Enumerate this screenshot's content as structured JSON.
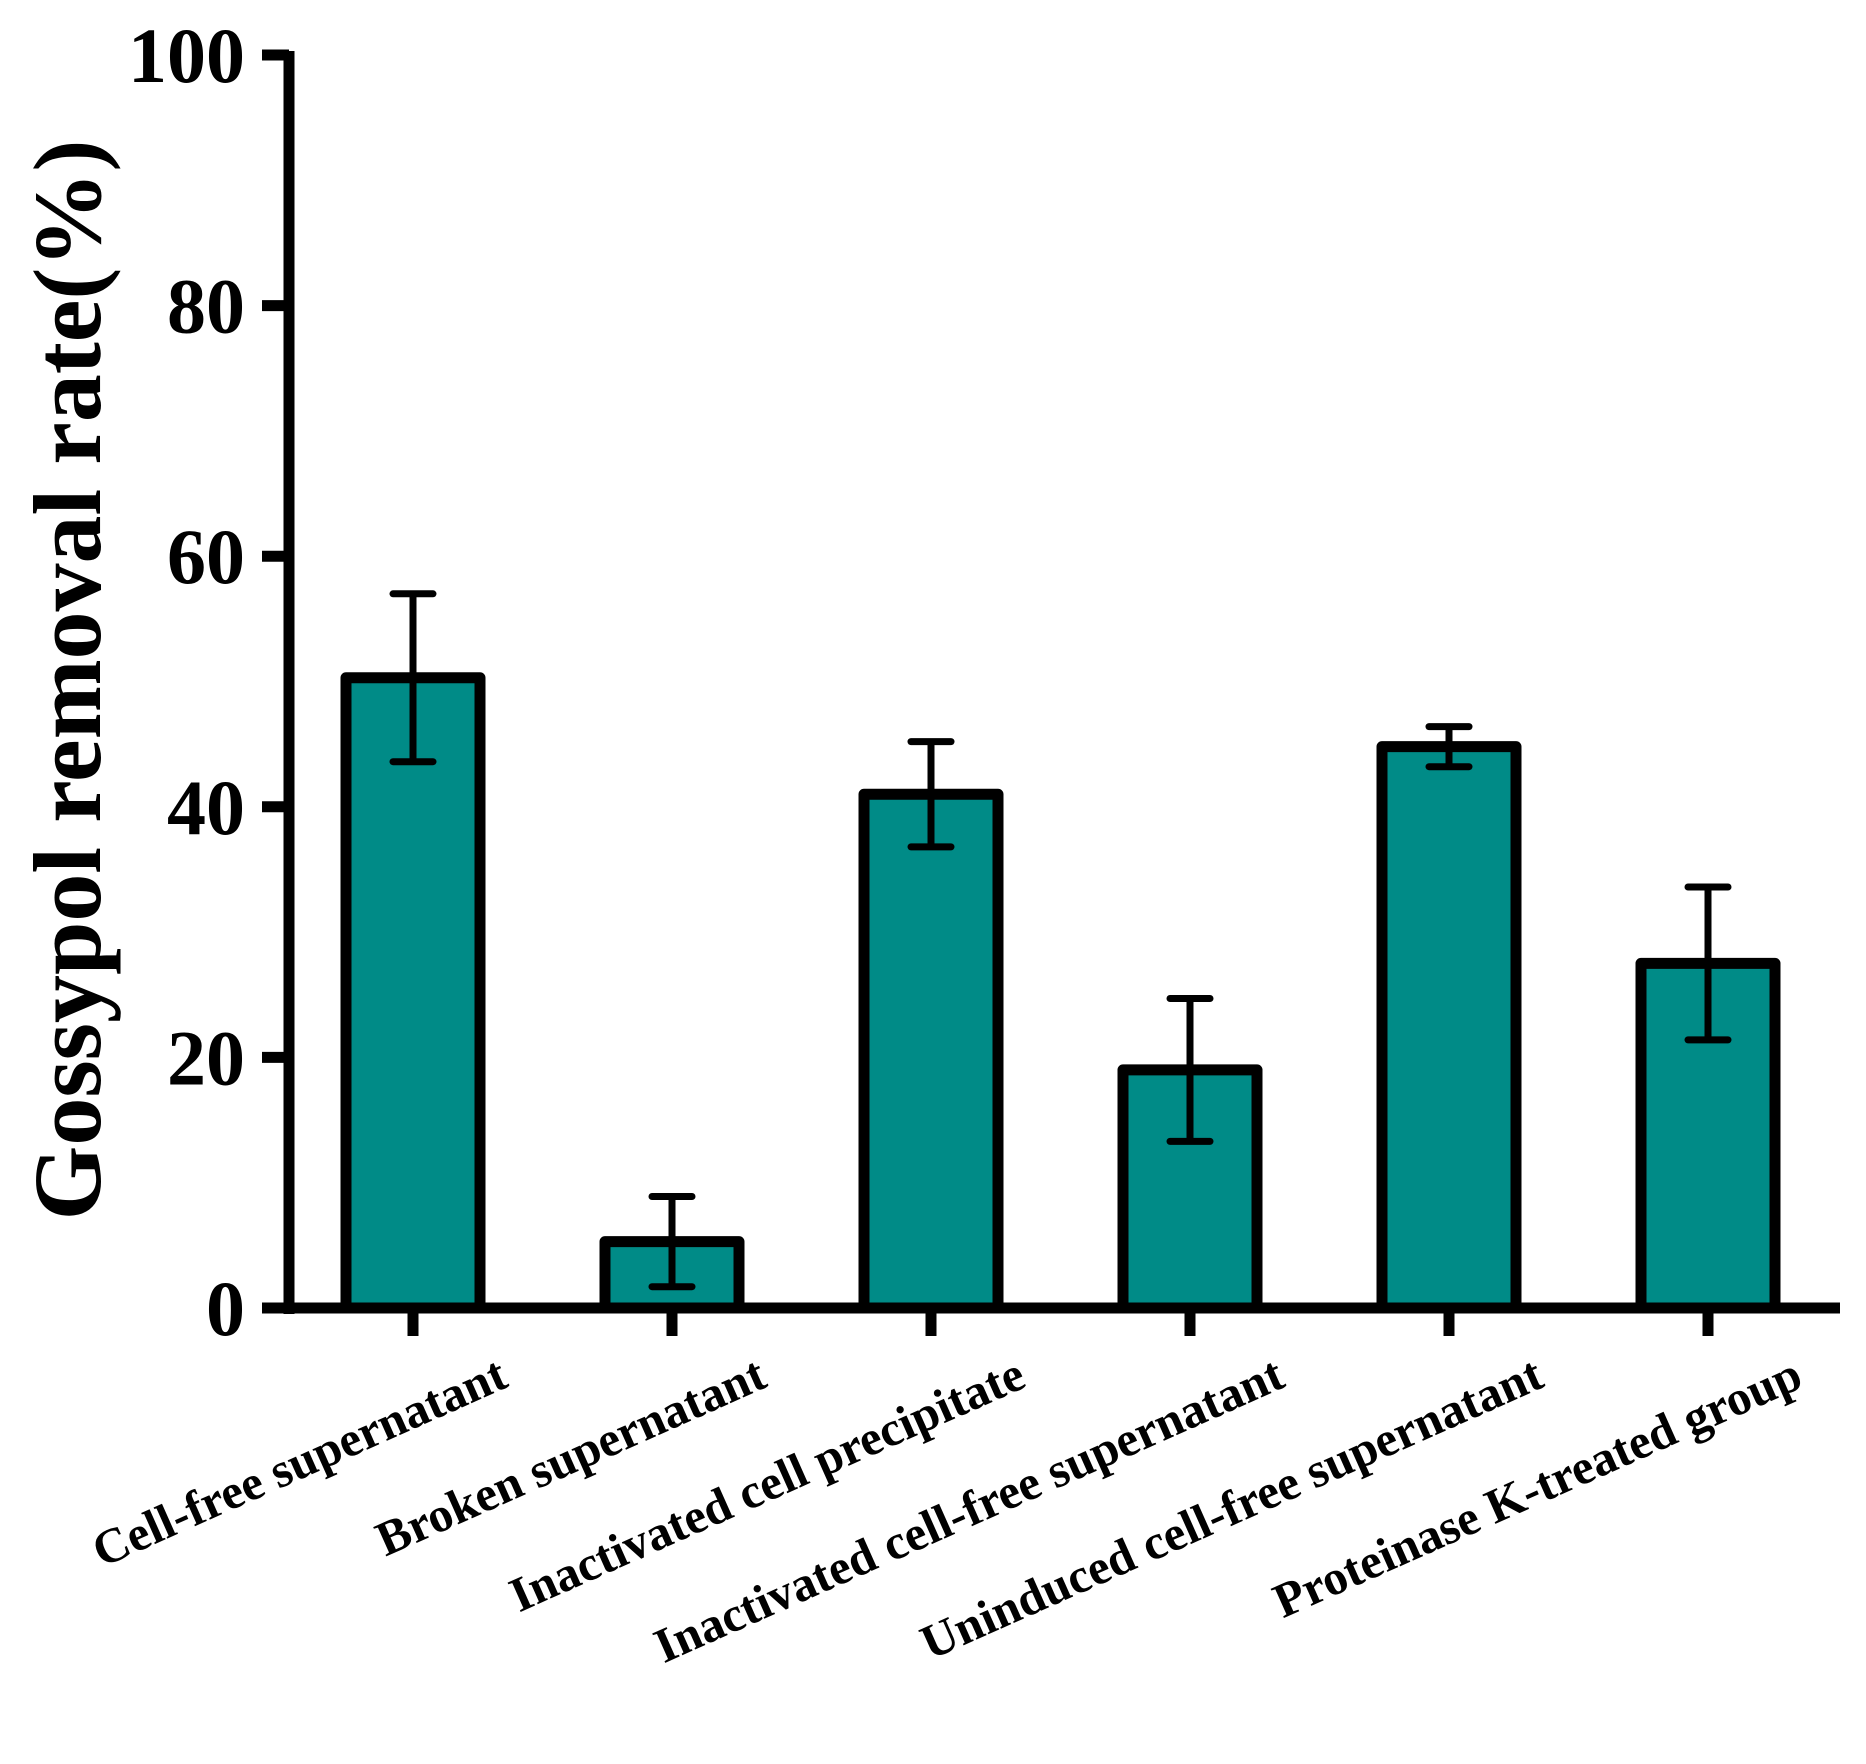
{
  "chart_data": {
    "type": "bar",
    "title": "",
    "xlabel": "",
    "ylabel": "Gossypol removal rate(%)",
    "ylim": [
      0,
      100
    ],
    "yticks": [
      "0",
      "20",
      "40",
      "60",
      "80",
      "100"
    ],
    "grid": false,
    "categories": [
      "Cell-free supernatant",
      "Broken supernatant",
      "Inactivated cell precipitate",
      "Inactivated cell-free supernatant",
      "Uninduced cell-free supernatant",
      "Proteinase K-treated group"
    ],
    "values": [
      50.3,
      5.3,
      41.0,
      19.0,
      44.8,
      27.5
    ],
    "errors": [
      6.7,
      3.6,
      4.2,
      5.7,
      1.6,
      6.1
    ],
    "colors": {
      "bar_fill": "#008B87",
      "bar_stroke": "#000000",
      "axis": "#000000"
    }
  }
}
